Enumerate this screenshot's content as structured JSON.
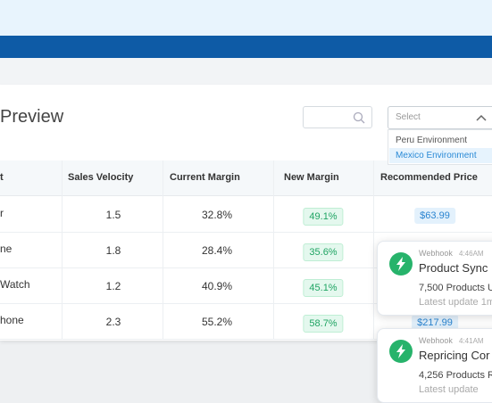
{
  "header": {
    "title": "Preview",
    "select_placeholder": "Select",
    "options": [
      "Peru Environment",
      "Mexico Environment"
    ]
  },
  "table": {
    "columns": [
      "t",
      "Sales Velocity",
      "Current Margin",
      "New Margin",
      "Recommended Price"
    ],
    "rows": [
      [
        "r",
        "1.5",
        "32.8%",
        "49.1%",
        "$63.99"
      ],
      [
        "ne",
        "1.8",
        "28.4%",
        "35.6%",
        null
      ],
      [
        "Watch",
        "1.2",
        "40.9%",
        "45.1%",
        null
      ],
      [
        "hone",
        "2.3",
        "55.2%",
        "58.7%",
        "$217.99"
      ]
    ]
  },
  "notifications": [
    {
      "source": "Webhook",
      "time": "4:46AM",
      "title": "Product Sync",
      "body": "7,500 Products U",
      "detail": "Latest update 1m"
    },
    {
      "source": "Webhook",
      "time": "4:41AM",
      "title": "Repricing Cor",
      "body": "4,256 Products R",
      "detail": "Latest update"
    }
  ]
}
